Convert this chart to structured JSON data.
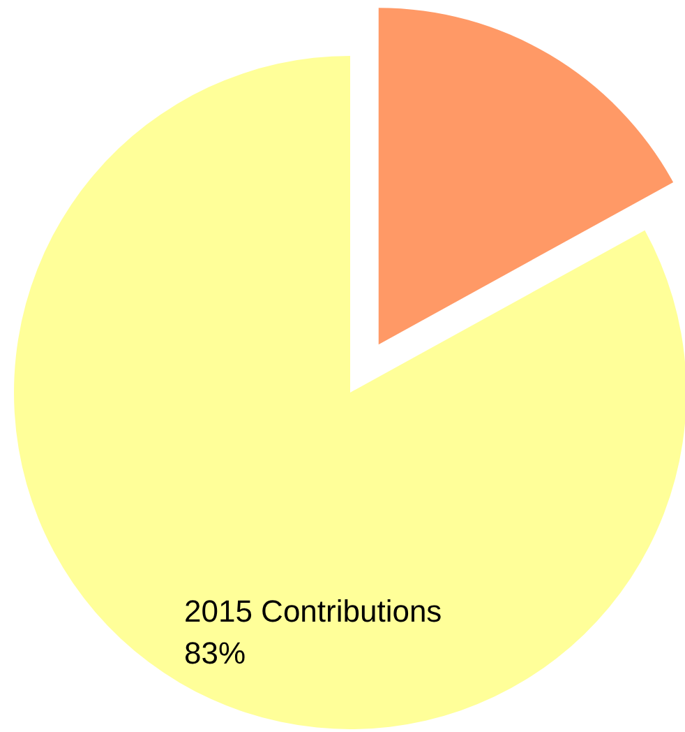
{
  "chart_data": {
    "type": "pie",
    "categories": [
      null,
      "2015 Contributions"
    ],
    "values": [
      17,
      83
    ],
    "colors": [
      "#ff9966",
      "#ffff99"
    ],
    "value_labels": [
      null,
      "83%"
    ]
  }
}
